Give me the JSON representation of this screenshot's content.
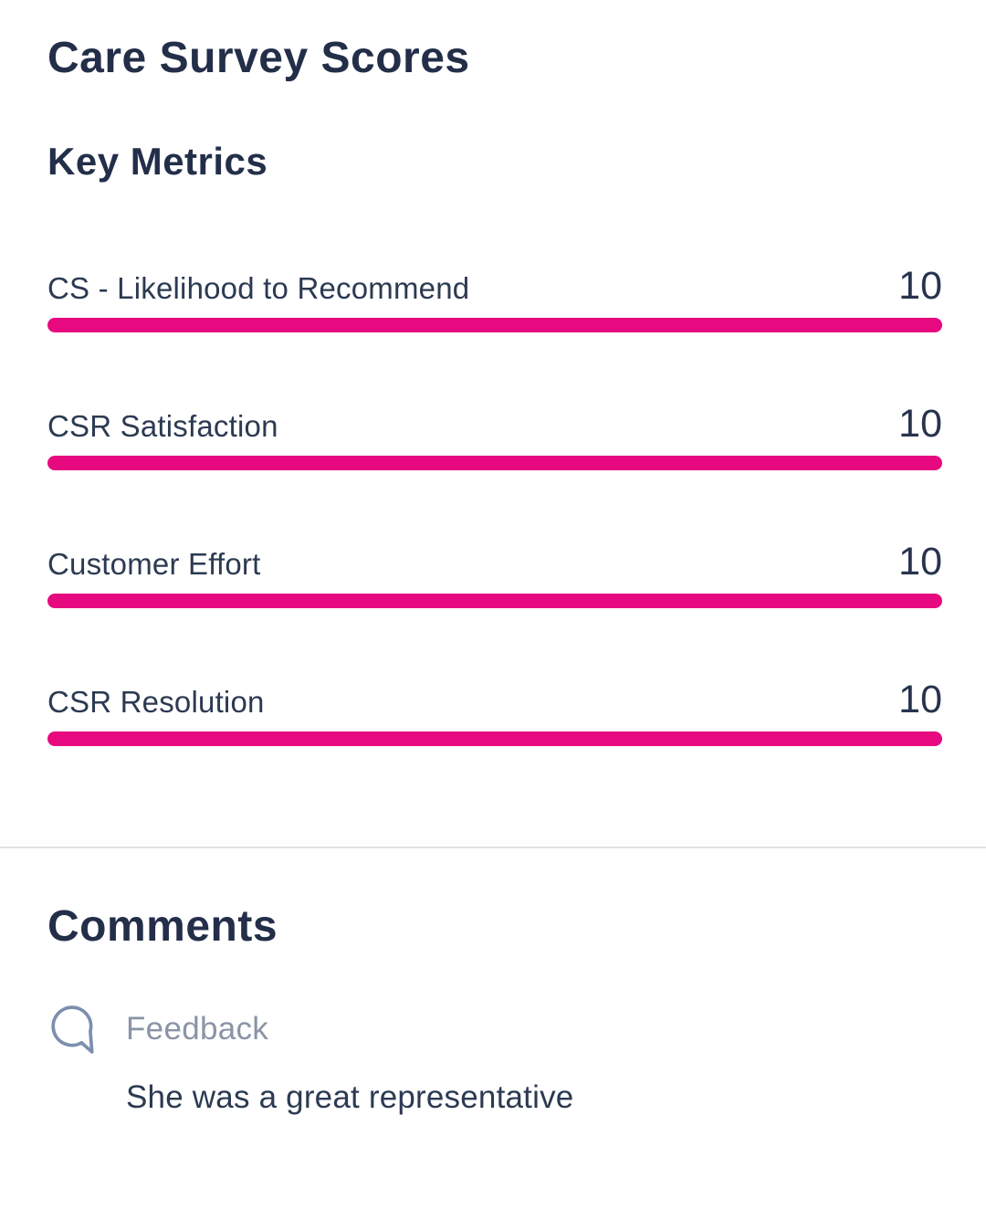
{
  "page": {
    "title": "Care Survey Scores"
  },
  "key_metrics": {
    "heading": "Key Metrics",
    "items": [
      {
        "label": "CS - Likelihood to Recommend",
        "value": "10",
        "percent": 100
      },
      {
        "label": "CSR Satisfaction",
        "value": "10",
        "percent": 100
      },
      {
        "label": "Customer Effort",
        "value": "10",
        "percent": 100
      },
      {
        "label": "CSR Resolution",
        "value": "10",
        "percent": 100
      }
    ]
  },
  "comments": {
    "heading": "Comments",
    "items": [
      {
        "icon": "speech-bubble-icon",
        "label": "Feedback",
        "text": "She was a great representative"
      }
    ]
  },
  "colors": {
    "accent_magenta": "#e7097f",
    "heading_navy": "#232e49",
    "body_navy": "#2c3a52",
    "muted_gray": "#8a94a6",
    "icon_slate": "#7c8fae",
    "divider_gray": "#e2e2e2"
  }
}
